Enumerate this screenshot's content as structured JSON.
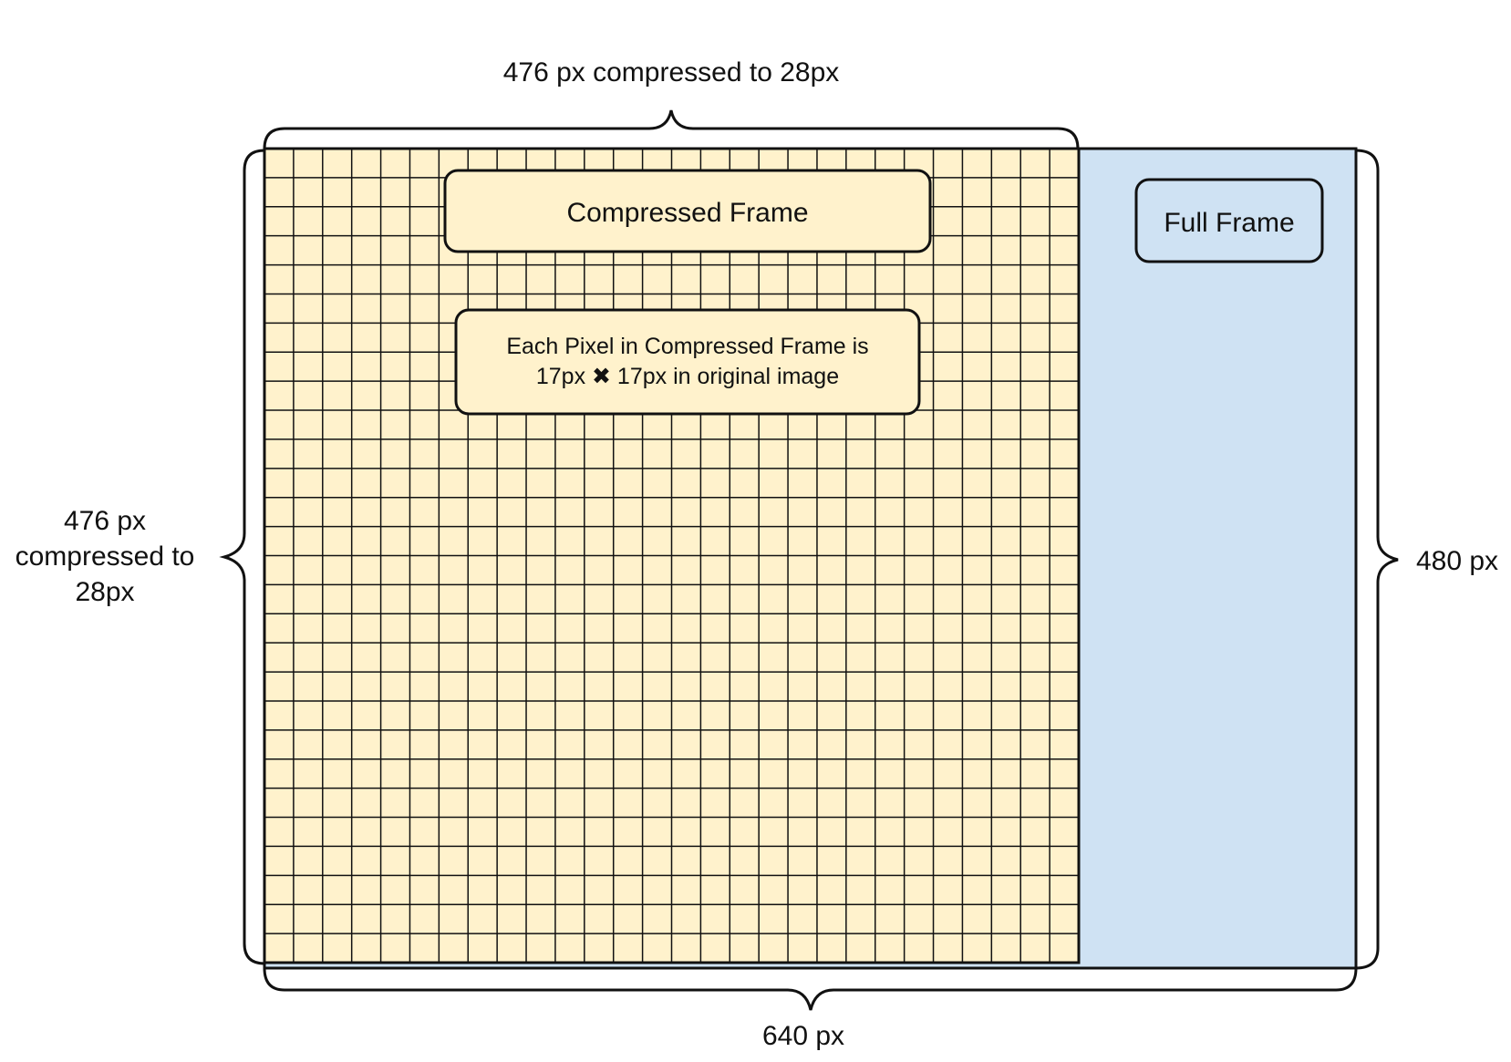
{
  "title_top": "476 px compressed to 28px",
  "left_label": {
    "line1": "476 px",
    "line2": "compressed to",
    "line3": "28px"
  },
  "right_label": "480 px",
  "bottom_label": "640 px",
  "compressed_frame_label": "Compressed Frame",
  "full_frame_label": "Full Frame",
  "pixel_note": {
    "line1": "Each Pixel in Compressed Frame is",
    "line2": "17px ✖ 17px in original image"
  },
  "grid": {
    "columns": 28,
    "rows": 28
  },
  "colors": {
    "compressed_fill": "#fff2cc",
    "full_fill": "#cfe2f3",
    "stroke": "#111111",
    "box_fill": "#fff2cc"
  }
}
